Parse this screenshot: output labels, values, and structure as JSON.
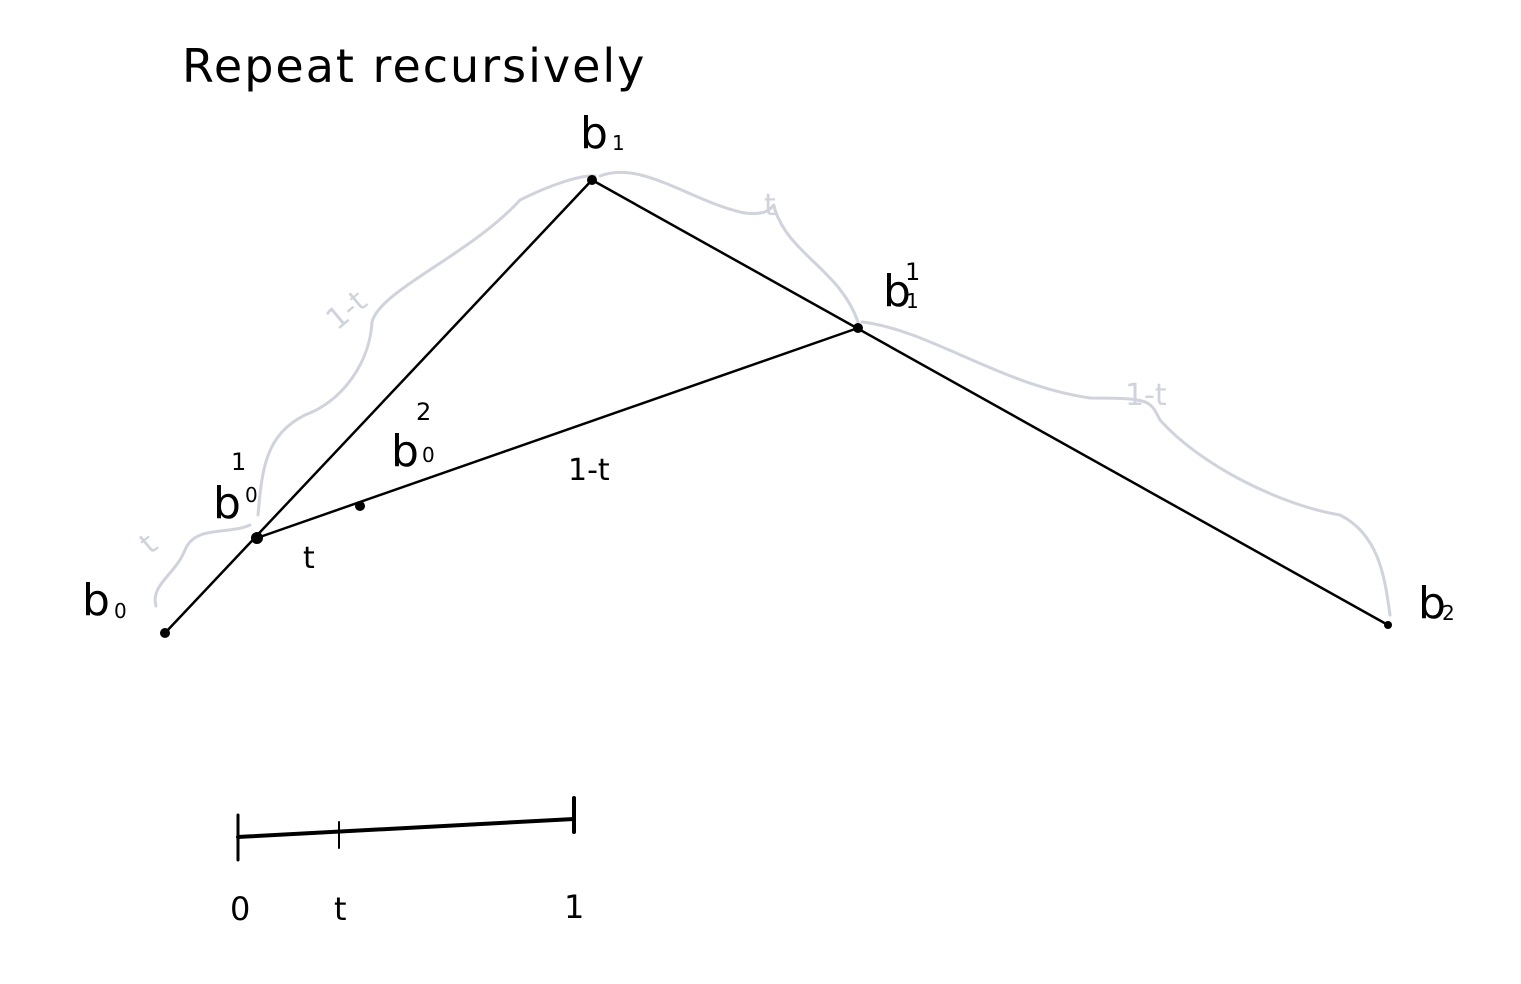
{
  "title": "Repeat recursively",
  "colors": {
    "ink": "#000000",
    "faint": "#d0d3dc",
    "background": "#ffffff"
  },
  "points": {
    "b0": {
      "base": "b",
      "sub": "0"
    },
    "b1": {
      "base": "b",
      "sub": "1"
    },
    "b2": {
      "base": "b",
      "sub": "2"
    },
    "b10": {
      "base": "b",
      "sup": "1",
      "sub": "0"
    },
    "b11": {
      "base": "b",
      "sup": "1",
      "sub": "1"
    },
    "b20": {
      "base": "b",
      "sup": "2",
      "sub": "0"
    }
  },
  "segment_labels": {
    "inner_t": "t",
    "inner_one_minus_t": "1-t",
    "brace_b0_b10": "t",
    "brace_b10_b1": "1-t",
    "brace_b1_b11": "t",
    "brace_b11_b2": "1-t"
  },
  "scale": {
    "start_label": "0",
    "t_label": "t",
    "end_label": "1"
  }
}
